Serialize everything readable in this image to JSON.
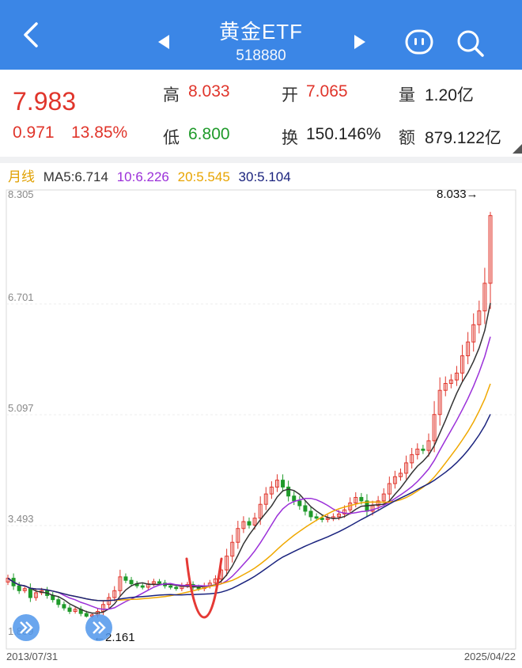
{
  "header": {
    "title": "黄金ETF",
    "code": "518880",
    "background_color": "#3b86e6",
    "icons": [
      "back-arrow-icon",
      "prev-triangle-icon",
      "next-triangle-icon",
      "chat-face-icon",
      "search-icon"
    ]
  },
  "quote": {
    "price": "7.983",
    "change": "0.971",
    "change_pct": "13.85%",
    "high_label": "高",
    "high": "8.033",
    "open_label": "开",
    "open": "7.065",
    "volume_label": "量",
    "volume": "1.20亿",
    "low_label": "低",
    "low": "6.800",
    "turnover_label": "换",
    "turnover": "150.146%",
    "amount_label": "额",
    "amount": "879.122亿",
    "up_color": "#e0352b",
    "down_color": "#1f9a2a"
  },
  "legend": {
    "period": "月线",
    "ma5": "MA5:6.714",
    "ma10": "10:6.226",
    "ma20": "20:5.545",
    "ma30": "30:5.104",
    "colors": {
      "period": "#e0a000",
      "ma5": "#333333",
      "ma10": "#9b30d9",
      "ma20": "#f0a800",
      "ma30": "#1a237e"
    }
  },
  "chart_data": {
    "type": "candlestick",
    "yticks": [
      "8.305",
      "6.701",
      "5.097",
      "3.493",
      "1.889"
    ],
    "ylim": [
      1.889,
      8.305
    ],
    "x_start_label": "2013/07/31",
    "x_end_label": "2025/04/22",
    "annotation_max": "8.033→",
    "annotation_min": "←2.161",
    "max_value": 8.033,
    "min_value": 2.161,
    "close_series": [
      2.73,
      2.62,
      2.55,
      2.58,
      2.45,
      2.52,
      2.55,
      2.48,
      2.42,
      2.35,
      2.3,
      2.25,
      2.28,
      2.22,
      2.18,
      2.2,
      2.25,
      2.35,
      2.45,
      2.55,
      2.75,
      2.7,
      2.65,
      2.62,
      2.6,
      2.65,
      2.68,
      2.66,
      2.62,
      2.6,
      2.58,
      2.62,
      2.64,
      2.6,
      2.58,
      2.62,
      2.66,
      2.72,
      2.85,
      3.05,
      3.25,
      3.45,
      3.55,
      3.5,
      3.6,
      3.8,
      3.95,
      4.05,
      4.15,
      4.05,
      3.92,
      3.85,
      3.78,
      3.7,
      3.62,
      3.6,
      3.58,
      3.6,
      3.62,
      3.66,
      3.72,
      3.82,
      3.9,
      3.85,
      3.7,
      3.78,
      3.85,
      3.95,
      4.1,
      4.2,
      4.25,
      4.4,
      4.52,
      4.6,
      4.58,
      4.72,
      5.1,
      5.45,
      5.55,
      5.6,
      5.7,
      5.95,
      6.15,
      6.4,
      6.6,
      7.0,
      7.98
    ],
    "ma5_end": 6.714,
    "ma10_end": 6.226,
    "ma20_end": 5.545,
    "ma30_end": 5.104
  }
}
